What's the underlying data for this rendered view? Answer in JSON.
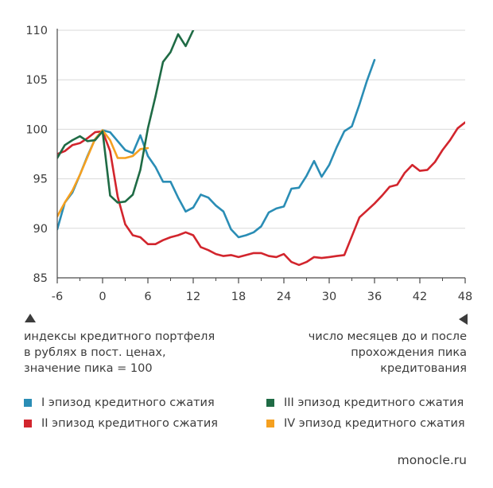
{
  "chart_data": {
    "type": "line",
    "x_ticks": [
      "-6",
      "0",
      "6",
      "12",
      "18",
      "24",
      "30",
      "36",
      "42",
      "48"
    ],
    "y_ticks": [
      "85",
      "90",
      "95",
      "100",
      "105",
      "110"
    ],
    "xlim": [
      -6,
      48
    ],
    "ylim": [
      85,
      110
    ],
    "series": [
      {
        "name": "I эпизод кредитного сжатия",
        "color": "#2a8db5",
        "x": [
          -6,
          -5,
          -4,
          -3,
          -2,
          -1,
          0,
          1,
          2,
          3,
          4,
          5,
          6,
          7,
          8,
          9,
          10,
          11,
          12,
          13,
          14,
          15,
          16,
          17,
          18,
          19,
          20,
          21,
          22,
          23,
          24,
          25,
          26,
          27,
          28,
          29,
          30,
          31,
          32,
          33,
          34,
          35,
          36
        ],
        "y": [
          89.9,
          92.6,
          93.6,
          95.4,
          97.3,
          99.0,
          99.9,
          99.7,
          98.8,
          97.9,
          97.6,
          99.4,
          97.3,
          96.2,
          94.7,
          94.7,
          93.1,
          91.7,
          92.1,
          93.4,
          93.1,
          92.3,
          91.7,
          89.9,
          89.1,
          89.3,
          89.6,
          90.2,
          91.6,
          92.0,
          92.2,
          94.0,
          94.1,
          95.3,
          96.8,
          95.2,
          96.4,
          98.2,
          99.8,
          100.3,
          102.5,
          104.9,
          107.0
        ]
      },
      {
        "name": "II эпизод кредитного сжатия",
        "color": "#d2252d",
        "x": [
          -6,
          -5,
          -4,
          -3,
          -2,
          -1,
          0,
          1,
          2,
          3,
          4,
          5,
          6,
          7,
          8,
          9,
          10,
          11,
          12,
          13,
          14,
          15,
          16,
          17,
          18,
          19,
          20,
          21,
          22,
          23,
          24,
          25,
          26,
          27,
          28,
          29,
          30,
          31,
          32,
          33,
          34,
          35,
          36,
          37,
          38,
          39,
          40,
          41,
          42,
          43,
          44,
          45,
          46,
          47,
          48
        ],
        "y": [
          97.5,
          97.8,
          98.4,
          98.6,
          99.1,
          99.7,
          99.8,
          97.8,
          93.2,
          90.4,
          89.3,
          89.1,
          88.4,
          88.4,
          88.8,
          89.1,
          89.3,
          89.6,
          89.3,
          88.1,
          87.8,
          87.4,
          87.2,
          87.3,
          87.1,
          87.3,
          87.5,
          87.5,
          87.2,
          87.1,
          87.4,
          86.6,
          86.3,
          86.6,
          87.1,
          87.0,
          87.1,
          87.2,
          87.3,
          89.2,
          91.1,
          91.8,
          92.5,
          93.3,
          94.2,
          94.4,
          95.6,
          96.4,
          95.8,
          95.9,
          96.7,
          97.9,
          98.9,
          100.1,
          100.7
        ]
      },
      {
        "name": "III эпизод кредитного сжатия",
        "color": "#1f6b45",
        "x": [
          -6,
          -5,
          -4,
          -3,
          -2,
          -1,
          0,
          1,
          2,
          3,
          4,
          5,
          6,
          7,
          8,
          9,
          10,
          11,
          12
        ],
        "y": [
          97.1,
          98.4,
          98.9,
          99.3,
          98.8,
          98.9,
          99.8,
          93.3,
          92.6,
          92.7,
          93.4,
          95.9,
          100.1,
          103.3,
          106.8,
          107.8,
          109.6,
          108.4,
          110.0
        ]
      },
      {
        "name": "IV эпизод кредитного сжатия",
        "color": "#f5a020",
        "x": [
          -6,
          -5,
          -4,
          -3,
          -2,
          -1,
          0,
          1,
          2,
          3,
          4,
          5,
          6
        ],
        "y": [
          91.2,
          92.6,
          93.8,
          95.4,
          97.2,
          99.0,
          99.9,
          98.9,
          97.1,
          97.1,
          97.3,
          98.0,
          98.1
        ]
      }
    ]
  },
  "notes": {
    "y_axis": [
      "индексы кредитного портфеля",
      "в рублях в пост. ценах,",
      "значение пика = 100"
    ],
    "x_axis": [
      "число месяцев до и после",
      "прохождения пика",
      "кредитования"
    ]
  },
  "legend": [
    {
      "label": "I эпизод кредитного сжатия",
      "color": "#2a8db5"
    },
    {
      "label": "III эпизод кредитного сжатия",
      "color": "#1f6b45"
    },
    {
      "label": "II эпизод кредитного сжатия",
      "color": "#d2252d"
    },
    {
      "label": "IV эпизод кредитного сжатия",
      "color": "#f5a020"
    }
  ],
  "source": "monocle.ru"
}
